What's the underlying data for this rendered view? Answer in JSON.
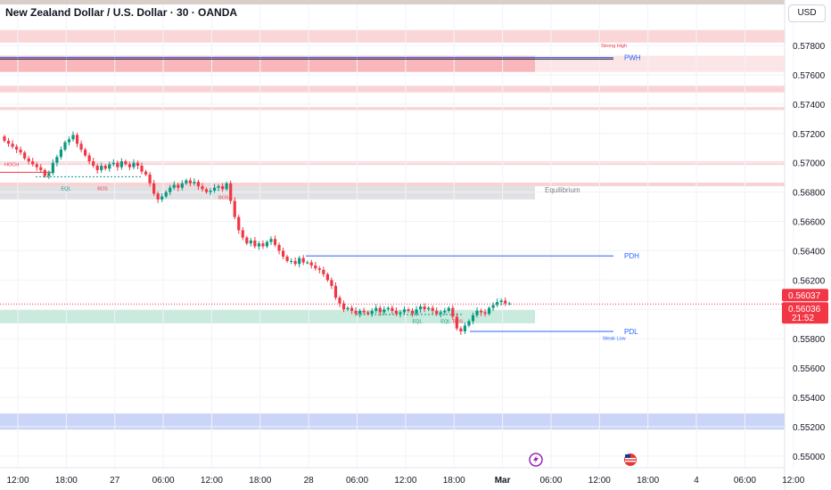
{
  "header": {
    "title": "New Zealand Dollar / U.S. Dollar · 30 · OANDA",
    "currency": "USD"
  },
  "chart_data": {
    "type": "candlestick",
    "ylim": [
      0.5492,
      0.5808
    ],
    "y_ticks": [
      "0.57800",
      "0.57600",
      "0.57400",
      "0.57200",
      "0.57000",
      "0.56800",
      "0.56600",
      "0.56400",
      "0.56200",
      "0.56000",
      "0.55800",
      "0.55600",
      "0.55400",
      "0.55200",
      "0.55000"
    ],
    "x_ticks": [
      {
        "label": "12:00",
        "i": 0
      },
      {
        "label": "18:00",
        "i": 12
      },
      {
        "label": "27",
        "i": 24
      },
      {
        "label": "06:00",
        "i": 36
      },
      {
        "label": "12:00",
        "i": 48
      },
      {
        "label": "18:00",
        "i": 60
      },
      {
        "label": "28",
        "i": 72
      },
      {
        "label": "06:00",
        "i": 84
      },
      {
        "label": "12:00",
        "i": 96
      },
      {
        "label": "18:00",
        "i": 108
      },
      {
        "label": "Mar",
        "i": 120
      },
      {
        "label": "06:00",
        "i": 132
      },
      {
        "label": "12:00",
        "i": 144
      },
      {
        "label": "18:00",
        "i": 156
      },
      {
        "label": "4",
        "i": 168
      },
      {
        "label": "06:00",
        "i": 180
      },
      {
        "label": "12:00",
        "i": 192
      }
    ],
    "closes": [
      0.5715,
      0.5713,
      0.5711,
      0.5709,
      0.5707,
      0.5703,
      0.5701,
      0.5699,
      0.5697,
      0.5695,
      0.5691,
      0.5693,
      0.57,
      0.5704,
      0.5709,
      0.5714,
      0.5716,
      0.5719,
      0.5713,
      0.5709,
      0.5705,
      0.5701,
      0.5698,
      0.5695,
      0.5698,
      0.5696,
      0.5699,
      0.57,
      0.5697,
      0.5701,
      0.5699,
      0.5697,
      0.57,
      0.5698,
      0.5694,
      0.5692,
      0.5686,
      0.5679,
      0.5675,
      0.5677,
      0.568,
      0.5683,
      0.5685,
      0.5683,
      0.5686,
      0.5688,
      0.5686,
      0.5687,
      0.5684,
      0.5682,
      0.568,
      0.5681,
      0.5683,
      0.5684,
      0.5682,
      0.5686,
      0.5674,
      0.5663,
      0.5654,
      0.5649,
      0.5645,
      0.5647,
      0.5643,
      0.5645,
      0.5643,
      0.5646,
      0.5648,
      0.5644,
      0.564,
      0.5636,
      0.5633,
      0.5633,
      0.5631,
      0.5635,
      0.5632,
      0.5632,
      0.563,
      0.5628,
      0.5627,
      0.5624,
      0.562,
      0.5616,
      0.5608,
      0.5604,
      0.56,
      0.5601,
      0.5599,
      0.5597,
      0.5599,
      0.5598,
      0.5597,
      0.5599,
      0.5601,
      0.5598,
      0.56,
      0.5601,
      0.5599,
      0.5597,
      0.5598,
      0.56,
      0.5599,
      0.5597,
      0.56,
      0.5602,
      0.56,
      0.5601,
      0.5599,
      0.5597,
      0.5598,
      0.5599,
      0.5601,
      0.5595,
      0.5587,
      0.5585,
      0.5589,
      0.5592,
      0.5596,
      0.5599,
      0.5598,
      0.5597,
      0.5601,
      0.5603,
      0.5605,
      0.5606,
      0.5604,
      0.5604
    ],
    "price_labels": [
      {
        "text": "Strong High",
        "y": 0.57807,
        "color": "#f23645"
      },
      {
        "text": "PWH",
        "y": 0.57718,
        "color": "#2962ff"
      },
      {
        "text": "Equilibrium",
        "y": 0.56815,
        "color": "#787b86"
      },
      {
        "text": "PDH",
        "y": 0.56365,
        "color": "#2962ff"
      },
      {
        "text": "PDL",
        "y": 0.5585,
        "color": "#2962ff"
      },
      {
        "text": "Weak Low",
        "y": 0.5581,
        "color": "#2962ff"
      },
      {
        "text": "EQL",
        "y": 0.5683,
        "i": 14,
        "color": "#089981"
      },
      {
        "text": "BOS",
        "y": 0.5683,
        "i": 23,
        "color": "#f23645"
      },
      {
        "text": "BOS",
        "y": 0.5677,
        "i": 53,
        "color": "#f23645"
      },
      {
        "text": "EQL",
        "y": 0.55925,
        "i": 101,
        "color": "#089981"
      },
      {
        "text": "EQL",
        "y": 0.55925,
        "i": 108,
        "color": "#089981"
      },
      {
        "text": "BOS",
        "y": 0.55925,
        "i": 111,
        "color": "#f23645"
      },
      {
        "text": "HOCH",
        "y": 0.56995,
        "i": 0,
        "color": "#f23645"
      }
    ],
    "last_price": "0.56037",
    "bid_price": "0.56036",
    "countdown": "21:52"
  }
}
